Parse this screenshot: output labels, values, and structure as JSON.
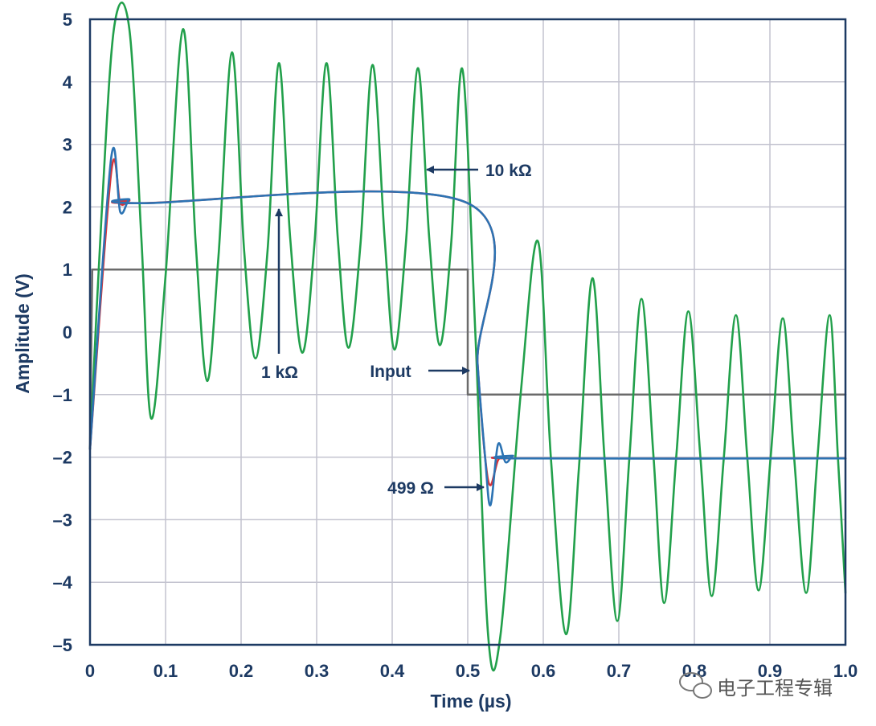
{
  "chart_data": {
    "type": "line",
    "xlabel": "Time (µs)",
    "ylabel": "Amplitude (V)",
    "xlim": [
      0,
      1.0
    ],
    "ylim": [
      -5,
      5
    ],
    "grid": true,
    "x_ticks": [
      0,
      0.1,
      0.2,
      0.3,
      0.4,
      0.5,
      0.6,
      0.7,
      0.8,
      0.9,
      1.0
    ],
    "x_tick_labels": [
      "0",
      "0.1",
      "0.2",
      "0.3",
      "0.4",
      "0.5",
      "0.6",
      "0.7",
      "0.8",
      "0.9",
      "1.0"
    ],
    "y_ticks": [
      5,
      4,
      3,
      2,
      1,
      0,
      -1,
      -2,
      -3,
      -4,
      -5
    ],
    "y_tick_labels": [
      "5",
      "4",
      "3",
      "2",
      "1",
      "0",
      "–1",
      "–2",
      "–3",
      "–4",
      "–5"
    ],
    "series": [
      {
        "name": "Input",
        "color": "#6b6b6b",
        "points": [
          [
            0.0,
            -1.87
          ],
          [
            0.003,
            1.0
          ],
          [
            0.5,
            1.0
          ],
          [
            0.5,
            -1.0
          ],
          [
            1.0,
            -1.0
          ]
        ]
      },
      {
        "name": "10 kΩ",
        "color": "#22a04b",
        "points": [
          [
            0.0,
            -1.87
          ],
          [
            0.015,
            1.8
          ],
          [
            0.032,
            4.88
          ],
          [
            0.052,
            4.85
          ],
          [
            0.068,
            1.5
          ],
          [
            0.081,
            -1.38
          ],
          [
            0.1,
            0.9
          ],
          [
            0.123,
            4.84
          ],
          [
            0.14,
            1.4
          ],
          [
            0.155,
            -0.78
          ],
          [
            0.17,
            1.2
          ],
          [
            0.188,
            4.47
          ],
          [
            0.204,
            1.3
          ],
          [
            0.219,
            -0.42
          ],
          [
            0.235,
            1.3
          ],
          [
            0.25,
            4.3
          ],
          [
            0.265,
            1.5
          ],
          [
            0.281,
            -0.33
          ],
          [
            0.297,
            1.4
          ],
          [
            0.313,
            4.3
          ],
          [
            0.328,
            1.5
          ],
          [
            0.342,
            -0.25
          ],
          [
            0.358,
            1.4
          ],
          [
            0.374,
            4.27
          ],
          [
            0.39,
            1.5
          ],
          [
            0.403,
            -0.28
          ],
          [
            0.418,
            1.4
          ],
          [
            0.434,
            4.22
          ],
          [
            0.449,
            1.5
          ],
          [
            0.463,
            -0.21
          ],
          [
            0.478,
            1.4
          ],
          [
            0.493,
            4.2
          ],
          [
            0.51,
            0.0
          ],
          [
            0.527,
            -4.85
          ],
          [
            0.543,
            -4.88
          ],
          [
            0.57,
            -1.0
          ],
          [
            0.593,
            1.45
          ],
          [
            0.61,
            -2.0
          ],
          [
            0.63,
            -4.83
          ],
          [
            0.647,
            -2.2
          ],
          [
            0.665,
            0.86
          ],
          [
            0.681,
            -2.0
          ],
          [
            0.698,
            -4.62
          ],
          [
            0.714,
            -2.0
          ],
          [
            0.73,
            0.53
          ],
          [
            0.746,
            -2.0
          ],
          [
            0.76,
            -4.33
          ],
          [
            0.776,
            -2.0
          ],
          [
            0.792,
            0.33
          ],
          [
            0.808,
            -2.0
          ],
          [
            0.823,
            -4.22
          ],
          [
            0.839,
            -2.0
          ],
          [
            0.855,
            0.27
          ],
          [
            0.87,
            -2.0
          ],
          [
            0.885,
            -4.13
          ],
          [
            0.901,
            -2.0
          ],
          [
            0.917,
            0.22
          ],
          [
            0.932,
            -2.0
          ],
          [
            0.948,
            -4.17
          ],
          [
            0.963,
            -2.0
          ],
          [
            0.979,
            0.27
          ],
          [
            0.99,
            -2.0
          ],
          [
            1.0,
            -4.17
          ]
        ]
      },
      {
        "name": "1 kΩ",
        "color": "#2c73b3",
        "points": [
          [
            0.0,
            -1.87
          ],
          [
            0.028,
            2.78
          ],
          [
            0.04,
            1.92
          ],
          [
            0.052,
            2.12
          ],
          [
            0.065,
            2.06
          ],
          [
            0.5,
            2.06
          ],
          [
            0.513,
            -0.5
          ],
          [
            0.523,
            -2.0
          ],
          [
            0.53,
            -2.77
          ],
          [
            0.54,
            -1.8
          ],
          [
            0.55,
            -2.08
          ],
          [
            0.56,
            -1.98
          ],
          [
            0.57,
            -2.02
          ],
          [
            1.0,
            -2.02
          ]
        ]
      },
      {
        "name": "499 Ω",
        "color": "#d6343a",
        "points": [
          [
            0.0,
            -1.87
          ],
          [
            0.028,
            2.55
          ],
          [
            0.04,
            2.06
          ],
          [
            0.052,
            2.1
          ],
          [
            0.065,
            2.06
          ],
          [
            0.5,
            2.06
          ],
          [
            0.513,
            -0.5
          ],
          [
            0.523,
            -2.0
          ],
          [
            0.53,
            -2.45
          ],
          [
            0.54,
            -2.05
          ],
          [
            0.55,
            -2.0
          ],
          [
            0.57,
            -2.02
          ],
          [
            1.0,
            -2.02
          ]
        ]
      }
    ],
    "annotations": [
      {
        "text": "10 kΩ",
        "target": [
          0.445,
          2.65
        ]
      },
      {
        "text": "1 kΩ",
        "target": [
          0.25,
          2.06
        ]
      },
      {
        "text": "Input",
        "target": [
          0.5,
          -0.6
        ]
      },
      {
        "text": "499 Ω",
        "target": [
          0.527,
          -2.45
        ]
      }
    ]
  },
  "watermark": "电子工程专辑"
}
